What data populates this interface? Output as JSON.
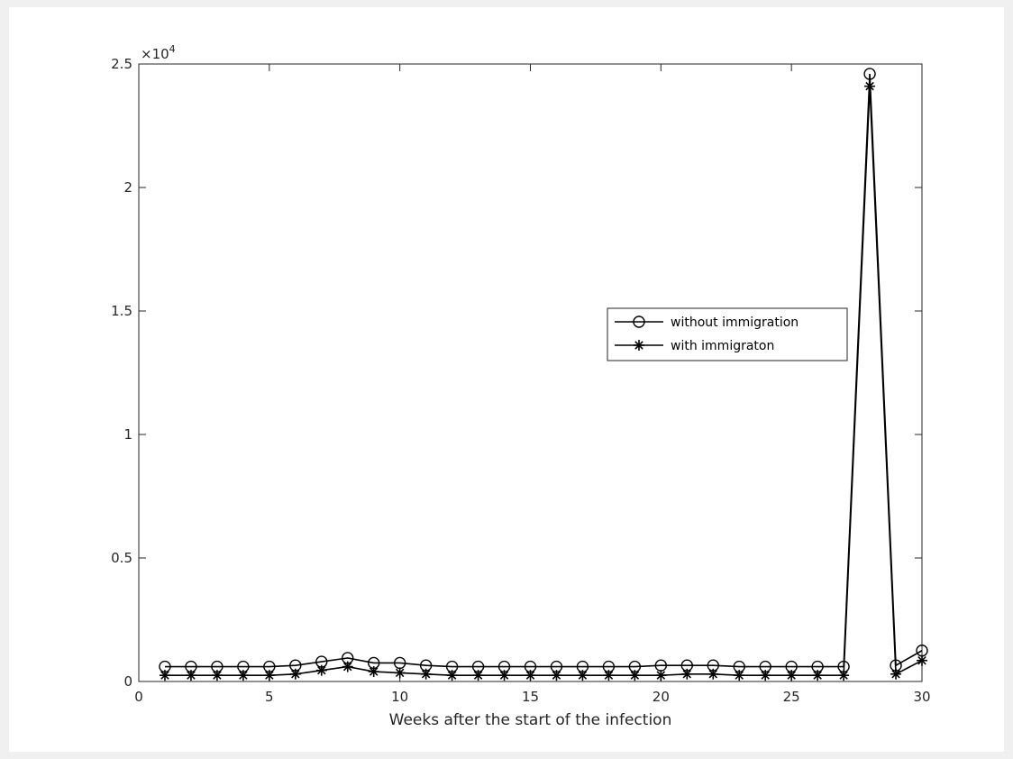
{
  "chart_data": {
    "type": "line",
    "title": "",
    "xlabel": "Weeks after the start of the infection",
    "ylabel": "",
    "xlim": [
      0,
      30
    ],
    "ylim": [
      0,
      25000
    ],
    "x_ticks": [
      0,
      5,
      10,
      15,
      20,
      25,
      30
    ],
    "x_tick_labels": [
      "0",
      "5",
      "10",
      "15",
      "20",
      "25",
      "30"
    ],
    "y_ticks": [
      0,
      5000,
      10000,
      15000,
      20000,
      25000
    ],
    "y_tick_labels": [
      "0",
      "0.5",
      "1",
      "1.5",
      "2",
      "2.5"
    ],
    "y_exponent_label": "×10",
    "y_exponent_power": "4",
    "grid": false,
    "legend_position": "right-middle",
    "colors": {
      "series": "#000000",
      "axis": "#262626",
      "background": "#ffffff",
      "window": "#f0f0f0"
    },
    "x": [
      1,
      2,
      3,
      4,
      5,
      6,
      7,
      8,
      9,
      10,
      11,
      12,
      13,
      14,
      15,
      16,
      17,
      18,
      19,
      20,
      21,
      22,
      23,
      24,
      25,
      26,
      27,
      28,
      29,
      30
    ],
    "series": [
      {
        "name": "without immigration",
        "marker": "circle",
        "values": [
          600,
          600,
          600,
          600,
          600,
          650,
          800,
          950,
          750,
          750,
          650,
          600,
          600,
          600,
          600,
          600,
          600,
          600,
          600,
          650,
          650,
          650,
          600,
          600,
          600,
          600,
          600,
          24600,
          650,
          1250
        ]
      },
      {
        "name": "with immigraton",
        "marker": "asterisk",
        "values": [
          250,
          250,
          250,
          250,
          250,
          300,
          450,
          600,
          400,
          350,
          300,
          250,
          250,
          250,
          250,
          250,
          250,
          250,
          250,
          250,
          300,
          300,
          250,
          250,
          250,
          250,
          250,
          24100,
          300,
          850
        ]
      }
    ]
  }
}
